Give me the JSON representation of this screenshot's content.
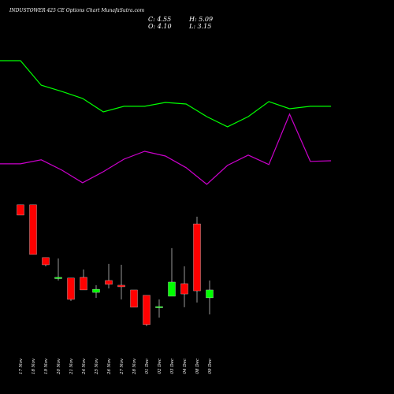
{
  "chart_data": {
    "type": "candlestick",
    "title": "INDUSTOWER 425 CE Options Chart MunafaSutra.com",
    "stats": [
      "C: 4.55",
      "H: 5.09",
      "O: 4.10",
      "L: 3.15"
    ],
    "categories": [
      "17 Nov",
      "18 Nov",
      "19 Nov",
      "20 Nov",
      "21 Nov",
      "24 Nov",
      "25 Nov",
      "26 Nov",
      "27 Nov",
      "28 Nov",
      "01 Dec",
      "02 Dec",
      "03 Dec",
      "04 Dec",
      "08 Dec",
      "09 Dec"
    ],
    "open": [
      9.42,
      9.42,
      6.4,
      5.2,
      5.23,
      5.27,
      4.41,
      5.09,
      4.82,
      4.55,
      4.24,
      3.56,
      4.19,
      4.91,
      8.33,
      4.1
    ],
    "high": [
      9.42,
      9.42,
      6.4,
      6.35,
      5.23,
      5.72,
      4.82,
      6.04,
      5.99,
      4.55,
      4.24,
      4.01,
      6.94,
      5.9,
      8.74,
      5.09
    ],
    "low": [
      8.83,
      6.58,
      5.9,
      5.09,
      3.92,
      4.55,
      4.1,
      4.64,
      4.01,
      3.56,
      2.48,
      2.97,
      4.19,
      3.56,
      3.83,
      3.15
    ],
    "close": [
      8.83,
      6.58,
      5.99,
      5.27,
      4.01,
      4.55,
      4.59,
      4.87,
      4.73,
      3.56,
      2.57,
      3.6,
      5.0,
      4.32,
      4.5,
      4.55
    ],
    "up_color": "#00ff00",
    "down_color": "#ff0000",
    "lines": [
      {
        "color": "#00ff00",
        "values": [
          17.66,
          16.26,
          15.9,
          15.5,
          14.73,
          15.05,
          15.05,
          15.27,
          15.18,
          14.46,
          13.88,
          14.46,
          15.32,
          14.91,
          15.05,
          15.05
        ]
      },
      {
        "color": "#cc00cc",
        "values": [
          11.76,
          11.99,
          11.4,
          10.68,
          11.31,
          12.03,
          12.48,
          12.21,
          11.54,
          10.59,
          11.67,
          12.26,
          11.72,
          14.6,
          11.9,
          11.94
        ]
      }
    ],
    "ylim": [
      -1.4,
      21.13
    ]
  }
}
